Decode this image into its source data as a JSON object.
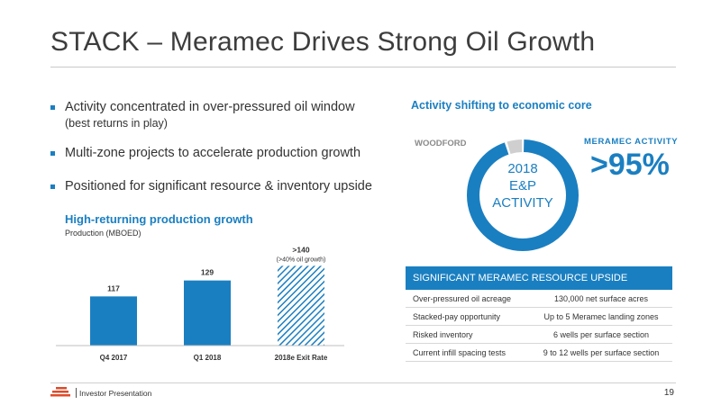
{
  "title": "STACK – Meramec Drives Strong Oil Growth",
  "bullets": [
    {
      "main": "Activity concentrated in over-pressured oil window",
      "sub": "(best returns in play)"
    },
    {
      "main": "Multi-zone projects to accelerate production growth",
      "sub": ""
    },
    {
      "main": "Positioned for significant resource & inventory upside",
      "sub": ""
    }
  ],
  "chart_title": "High-returning production growth",
  "chart_subtitle": "Production (MBOED)",
  "chart_data": {
    "type": "bar",
    "categories": [
      "Q4 2017",
      "Q1 2018",
      "2018e Exit Rate"
    ],
    "values": [
      117,
      129,
      140
    ],
    "data_labels": [
      "117",
      "129",
      ">140"
    ],
    "annotations": [
      "(>40% oil growth)"
    ],
    "ylim": [
      80,
      145
    ],
    "bar_color": "#1a7fc1",
    "estimate_pattern": "hatched",
    "grid": false
  },
  "donut": {
    "title": "Activity shifting to economic core",
    "center_line1": "2018",
    "center_line2": "E&P",
    "center_line3": "ACTIVITY",
    "woodford_label": "WOODFORD",
    "meramec_label": "MERAMEC ACTIVITY",
    "meramec_value": ">95%",
    "meramec_fraction": 0.95,
    "main_color": "#1a7fc1",
    "other_color": "#cfcfcf"
  },
  "table": {
    "header": "SIGNIFICANT MERAMEC RESOURCE UPSIDE",
    "rows": [
      {
        "label": "Over-pressured oil acreage",
        "value": "130,000 net surface acres"
      },
      {
        "label": "Stacked-pay opportunity",
        "value": "Up to 5 Meramec landing zones"
      },
      {
        "label": "Risked inventory",
        "value": "6 wells per surface section"
      },
      {
        "label": "Current infill spacing tests",
        "value": "9 to 12 wells per surface section"
      }
    ]
  },
  "footer": {
    "text": "Investor Presentation",
    "page": "19",
    "logo_icon": "company-logo-icon",
    "logo_color": "#e04a2a"
  }
}
